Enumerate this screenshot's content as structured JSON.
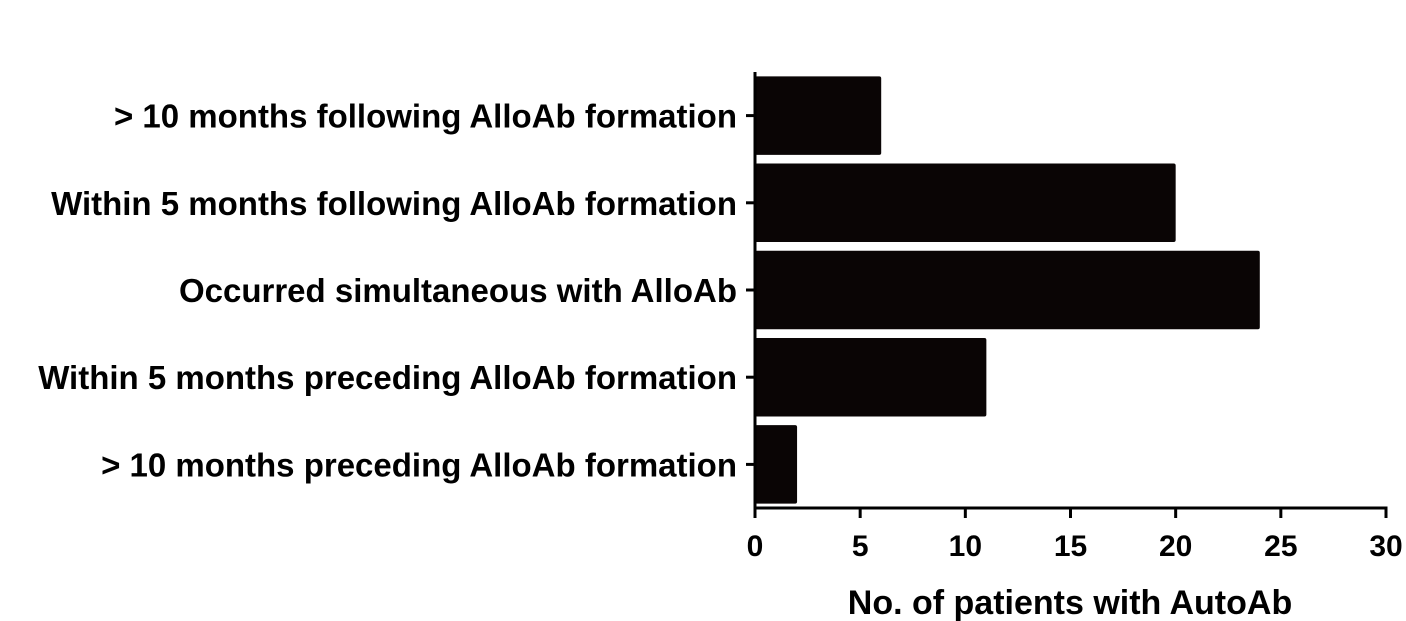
{
  "chart_data": {
    "type": "bar",
    "orientation": "horizontal",
    "categories": [
      "> 10 months following AlloAb formation",
      "Within 5 months following AlloAb formation",
      "Occurred simultaneous with AlloAb",
      "Within 5 months preceding AlloAb formation",
      "> 10 months preceding AlloAb formation"
    ],
    "values": [
      6,
      20,
      24,
      11,
      2
    ],
    "xlabel": "No. of patients with AutoAb",
    "ylabel": "",
    "xlim": [
      0,
      30
    ],
    "xticks": [
      "0",
      "5",
      "10",
      "15",
      "20",
      "25",
      "30"
    ],
    "bar_color": "#0a0505",
    "grid": false,
    "legend": "none"
  }
}
